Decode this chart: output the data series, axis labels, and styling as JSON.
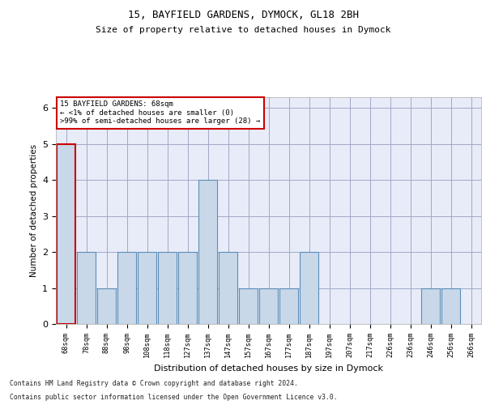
{
  "title1": "15, BAYFIELD GARDENS, DYMOCK, GL18 2BH",
  "title2": "Size of property relative to detached houses in Dymock",
  "xlabel": "Distribution of detached houses by size in Dymock",
  "ylabel": "Number of detached properties",
  "categories": [
    "68sqm",
    "78sqm",
    "88sqm",
    "98sqm",
    "108sqm",
    "118sqm",
    "127sqm",
    "137sqm",
    "147sqm",
    "157sqm",
    "167sqm",
    "177sqm",
    "187sqm",
    "197sqm",
    "207sqm",
    "217sqm",
    "226sqm",
    "236sqm",
    "246sqm",
    "256sqm",
    "266sqm"
  ],
  "values": [
    5,
    2,
    1,
    2,
    2,
    2,
    2,
    4,
    2,
    1,
    1,
    1,
    2,
    0,
    0,
    0,
    0,
    0,
    1,
    1,
    0
  ],
  "bar_color": "#c8d8e8",
  "bar_edge_color": "#5b8db8",
  "highlight_index": 0,
  "highlight_edge_color": "#cc0000",
  "ylim": [
    0,
    6.3
  ],
  "yticks": [
    0,
    1,
    2,
    3,
    4,
    5,
    6
  ],
  "annotation_line1": "15 BAYFIELD GARDENS: 68sqm",
  "annotation_line2": "← <1% of detached houses are smaller (0)",
  "annotation_line3": ">99% of semi-detached houses are larger (28) →",
  "footnote1": "Contains HM Land Registry data © Crown copyright and database right 2024.",
  "footnote2": "Contains public sector information licensed under the Open Government Licence v3.0.",
  "grid_color": "#a0a8c8",
  "background_color": "#e8ecf8",
  "fig_background": "#ffffff"
}
